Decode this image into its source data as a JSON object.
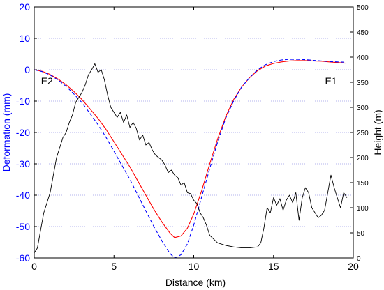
{
  "chart_data": {
    "type": "line",
    "xlabel": "Distance (km)",
    "ylabel_left": "Deformation (mm)",
    "ylabel_right": "Height (m)",
    "xlim": [
      0,
      20
    ],
    "ylim_left": [
      -60,
      20
    ],
    "ylim_right": [
      0,
      500
    ],
    "x_ticks": [
      0,
      5,
      10,
      15,
      20
    ],
    "y_ticks_left": [
      -60,
      -50,
      -40,
      -30,
      -20,
      -10,
      0,
      10,
      20
    ],
    "y_ticks_right": [
      0,
      50,
      100,
      150,
      200,
      250,
      300,
      350,
      400,
      450,
      500
    ],
    "grid": "horizontal dotted",
    "colors": {
      "left_axis": "#0000ff",
      "red_series": "#ff0000",
      "blue_series": "#0000ff",
      "height_series": "#000000",
      "grid": "#9a9ae6"
    },
    "annotations": [
      {
        "text": "E2",
        "x": 0.8,
        "y": -3.5
      },
      {
        "text": "E1",
        "x": 18.6,
        "y": -3.5
      }
    ],
    "series": [
      {
        "axis": "left",
        "style": "solid",
        "color": "#ff0000",
        "x": [
          0,
          0.5,
          1,
          1.5,
          2,
          2.5,
          3,
          3.5,
          4,
          4.5,
          5,
          5.5,
          6,
          6.5,
          7,
          7.5,
          8,
          8.5,
          8.8,
          9.2,
          9.6,
          10,
          10.5,
          11,
          11.5,
          12,
          12.5,
          13,
          13.5,
          14,
          14.5,
          15,
          15.5,
          16,
          16.5,
          17,
          17.5,
          18,
          18.5,
          19,
          19.5
        ],
        "y": [
          0,
          -0.5,
          -1.5,
          -3.0,
          -4.8,
          -7.0,
          -9.5,
          -12.5,
          -15.5,
          -19.0,
          -23.0,
          -27.0,
          -31.0,
          -35.5,
          -40.0,
          -44.5,
          -48.5,
          -52.0,
          -53.5,
          -53.0,
          -50.5,
          -46.0,
          -38.5,
          -30.0,
          -22.0,
          -15.0,
          -9.5,
          -5.5,
          -2.5,
          -0.3,
          1.2,
          2.0,
          2.5,
          2.8,
          2.9,
          2.9,
          2.8,
          2.7,
          2.5,
          2.3,
          2.1
        ]
      },
      {
        "axis": "left",
        "style": "dashed",
        "color": "#0000ff",
        "x": [
          0,
          0.5,
          1,
          1.5,
          2,
          2.5,
          3,
          3.5,
          4,
          4.5,
          5,
          5.5,
          6,
          6.5,
          7,
          7.5,
          8,
          8.5,
          8.8,
          9.2,
          9.6,
          10,
          10.5,
          11,
          11.5,
          12,
          12.5,
          13,
          13.5,
          14,
          14.5,
          15,
          15.5,
          16,
          16.5,
          17,
          17.5,
          18,
          18.5,
          19,
          19.5
        ],
        "y": [
          0,
          -0.6,
          -1.7,
          -3.3,
          -5.3,
          -7.8,
          -10.5,
          -14.0,
          -17.5,
          -21.5,
          -26.0,
          -30.5,
          -35.0,
          -40.0,
          -45.0,
          -50.0,
          -54.5,
          -58.5,
          -60.0,
          -59.0,
          -55.5,
          -49.5,
          -40.5,
          -31.5,
          -23.0,
          -15.5,
          -10.0,
          -5.5,
          -2.5,
          0.0,
          1.6,
          2.6,
          3.1,
          3.3,
          3.3,
          3.2,
          3.0,
          2.8,
          2.6,
          2.5,
          2.4
        ]
      },
      {
        "axis": "right",
        "style": "solid",
        "color": "#000000",
        "x": [
          0,
          0.2,
          0.4,
          0.6,
          0.8,
          1.0,
          1.2,
          1.4,
          1.6,
          1.8,
          2.0,
          2.2,
          2.4,
          2.6,
          2.8,
          3.0,
          3.2,
          3.4,
          3.6,
          3.8,
          4.0,
          4.2,
          4.4,
          4.6,
          4.8,
          5.0,
          5.2,
          5.4,
          5.6,
          5.8,
          6.0,
          6.2,
          6.4,
          6.6,
          6.8,
          7.0,
          7.2,
          7.4,
          7.6,
          7.8,
          8.0,
          8.2,
          8.4,
          8.6,
          8.8,
          9.0,
          9.2,
          9.4,
          9.6,
          9.8,
          10.0,
          10.2,
          10.4,
          10.6,
          10.8,
          11.0,
          11.5,
          12.0,
          12.5,
          13.0,
          13.5,
          14.0,
          14.2,
          14.4,
          14.6,
          14.8,
          15.0,
          15.2,
          15.4,
          15.6,
          15.8,
          16.0,
          16.2,
          16.4,
          16.6,
          16.8,
          17.0,
          17.2,
          17.4,
          17.6,
          17.8,
          18.0,
          18.2,
          18.4,
          18.6,
          18.8,
          19.0,
          19.2,
          19.4,
          19.6
        ],
        "y": [
          10,
          20,
          55,
          90,
          110,
          130,
          165,
          200,
          220,
          240,
          250,
          270,
          285,
          310,
          320,
          330,
          345,
          365,
          375,
          387,
          370,
          375,
          355,
          325,
          300,
          290,
          280,
          290,
          270,
          285,
          260,
          270,
          258,
          235,
          245,
          225,
          230,
          215,
          205,
          200,
          195,
          185,
          170,
          175,
          165,
          160,
          145,
          150,
          130,
          128,
          115,
          108,
          90,
          80,
          65,
          45,
          30,
          25,
          22,
          20,
          20,
          22,
          30,
          60,
          100,
          90,
          120,
          105,
          118,
          95,
          115,
          125,
          110,
          130,
          75,
          120,
          140,
          130,
          100,
          90,
          80,
          85,
          95,
          130,
          165,
          140,
          120,
          100,
          130,
          120
        ]
      }
    ]
  }
}
